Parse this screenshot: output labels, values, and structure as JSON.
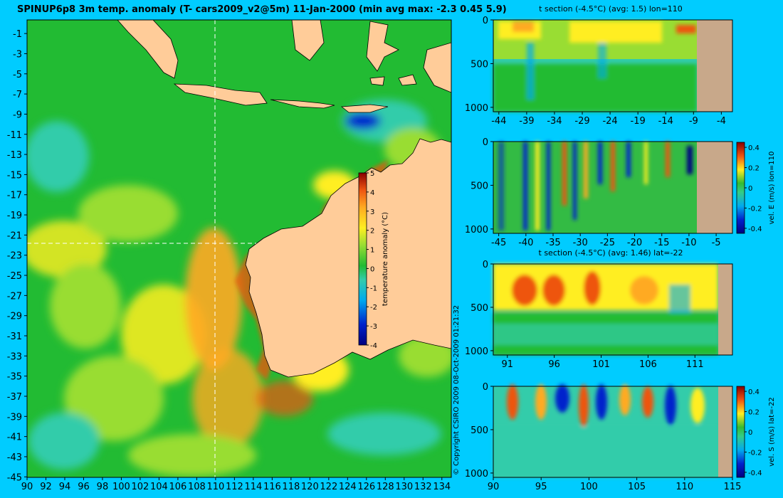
{
  "colors": {
    "background": "#00ccff",
    "land": "#ffcc99",
    "section_land": "#c8a88a",
    "cmap": [
      "#000080",
      "#0022cc",
      "#00aaee",
      "#33ccaa",
      "#22bb33",
      "#99dd33",
      "#ffee22",
      "#ffaa22",
      "#ee5511",
      "#880000"
    ]
  },
  "main": {
    "title": "SPINUP6p8 3m temp. anomaly (T- cars2009_v2@5m) 11-Jan-2000 (min avg max: -2.3 0.45 5.9)",
    "x_ticks": [
      "90",
      "92",
      "94",
      "96",
      "98",
      "100",
      "102",
      "104",
      "106",
      "108",
      "110",
      "112",
      "114",
      "116",
      "118",
      "120",
      "122",
      "124",
      "126",
      "128",
      "130",
      "132",
      "134"
    ],
    "y_ticks": [
      "-1",
      "-3",
      "-5",
      "-7",
      "-9",
      "-11",
      "-13",
      "-15",
      "-17",
      "-19",
      "-21",
      "-23",
      "-25",
      "-27",
      "-29",
      "-31",
      "-33",
      "-35",
      "-37",
      "-39",
      "-41",
      "-43",
      "-45"
    ],
    "colorbar_label": "temperature anomaly (°C)",
    "colorbar_ticks": [
      "5",
      "4",
      "3",
      "2",
      "1",
      "0",
      "-1",
      "-2",
      "-3",
      "-4"
    ],
    "copyright": "© Copyright CSIRO 2009   08-Oct-2009 01:21:32"
  },
  "panels": [
    {
      "title": "t section (-4.5°C) (avg: 1.5) lon=110",
      "x_ticks": [
        "-44",
        "-39",
        "-34",
        "-29",
        "-24",
        "-19",
        "-14",
        "-9",
        "-4"
      ],
      "y_ticks": [
        "0",
        "500",
        "1000"
      ]
    },
    {
      "title": "",
      "x_ticks": [
        "-45",
        "-40",
        "-35",
        "-30",
        "-25",
        "-20",
        "-15",
        "-10",
        "-5"
      ],
      "y_ticks": [
        "0",
        "500",
        "1000"
      ],
      "colorbar_label": "vel. E (m/s) lon=110",
      "colorbar_ticks": [
        "0.4",
        "0.2",
        "0",
        "-0.2",
        "-0.4"
      ]
    },
    {
      "title": "t section (-4.5°C) (avg: 1.46) lat=-22",
      "x_ticks": [
        "91",
        "96",
        "101",
        "106",
        "111"
      ],
      "y_ticks": [
        "0",
        "500",
        "1000"
      ]
    },
    {
      "title": "",
      "x_ticks": [
        "90",
        "95",
        "100",
        "105",
        "110",
        "115"
      ],
      "y_ticks": [
        "0",
        "500",
        "1000"
      ],
      "colorbar_label": "vel. S (m/s) lat=-22",
      "colorbar_ticks": [
        "0.4",
        "0.2",
        "0",
        "-0.2",
        "-0.4"
      ]
    }
  ],
  "chart_data": [
    {
      "type": "heatmap",
      "title": "SPINUP6p8 3m temp. anomaly (T- cars2009_v2@5m) 11-Jan-2000 (min avg max: -2.3 0.45 5.9)",
      "xlabel": "",
      "ylabel": "",
      "xlim": [
        90,
        135
      ],
      "ylim": [
        -45,
        1
      ],
      "x_ticks": [
        90,
        92,
        94,
        96,
        98,
        100,
        102,
        104,
        106,
        108,
        110,
        112,
        114,
        116,
        118,
        120,
        122,
        124,
        126,
        128,
        130,
        132,
        134
      ],
      "y_ticks": [
        -1,
        -3,
        -5,
        -7,
        -9,
        -11,
        -13,
        -15,
        -17,
        -19,
        -21,
        -23,
        -25,
        -27,
        -29,
        -31,
        -33,
        -35,
        -37,
        -39,
        -41,
        -43,
        -45
      ],
      "colorbar": {
        "label": "temperature anomaly (°C)",
        "range": [
          -4,
          5
        ],
        "ticks": [
          5,
          4,
          3,
          2,
          1,
          0,
          -1,
          -2,
          -3,
          -4
        ]
      },
      "section_lines": {
        "lon": 110,
        "lat": -22
      },
      "stats": {
        "min": -2.3,
        "avg": 0.45,
        "max": 5.9
      }
    },
    {
      "type": "heatmap",
      "title": "t section (-4.5°C) (avg: 1.5) lon=110",
      "x_ticks": [
        -44,
        -39,
        -34,
        -29,
        -24,
        -19,
        -14,
        -9,
        -4
      ],
      "y_ticks": [
        0,
        500,
        1000
      ],
      "xlim": [
        -45,
        -2
      ],
      "ylim": [
        1050,
        0
      ],
      "avg": 1.5
    },
    {
      "type": "heatmap",
      "title": "",
      "x_ticks": [
        -45,
        -40,
        -35,
        -30,
        -25,
        -20,
        -15,
        -10,
        -5
      ],
      "y_ticks": [
        0,
        500,
        1000
      ],
      "xlim": [
        -46,
        -2
      ],
      "ylim": [
        1050,
        0
      ],
      "colorbar": {
        "label": "vel. E (m/s) lon=110",
        "range": [
          -0.45,
          0.45
        ],
        "ticks": [
          0.4,
          0.2,
          0,
          -0.2,
          -0.4
        ]
      }
    },
    {
      "type": "heatmap",
      "title": "t section (-4.5°C) (avg: 1.46) lat=-22",
      "x_ticks": [
        91,
        96,
        101,
        106,
        111
      ],
      "y_ticks": [
        0,
        500,
        1000
      ],
      "xlim": [
        89.5,
        115
      ],
      "ylim": [
        1050,
        0
      ],
      "avg": 1.46
    },
    {
      "type": "heatmap",
      "title": "",
      "x_ticks": [
        90,
        95,
        100,
        105,
        110,
        115
      ],
      "y_ticks": [
        0,
        500,
        1000
      ],
      "xlim": [
        90,
        115
      ],
      "ylim": [
        1050,
        0
      ],
      "colorbar": {
        "label": "vel. S (m/s) lat=-22",
        "range": [
          -0.45,
          0.45
        ],
        "ticks": [
          0.4,
          0.2,
          0,
          -0.2,
          -0.4
        ]
      }
    }
  ]
}
